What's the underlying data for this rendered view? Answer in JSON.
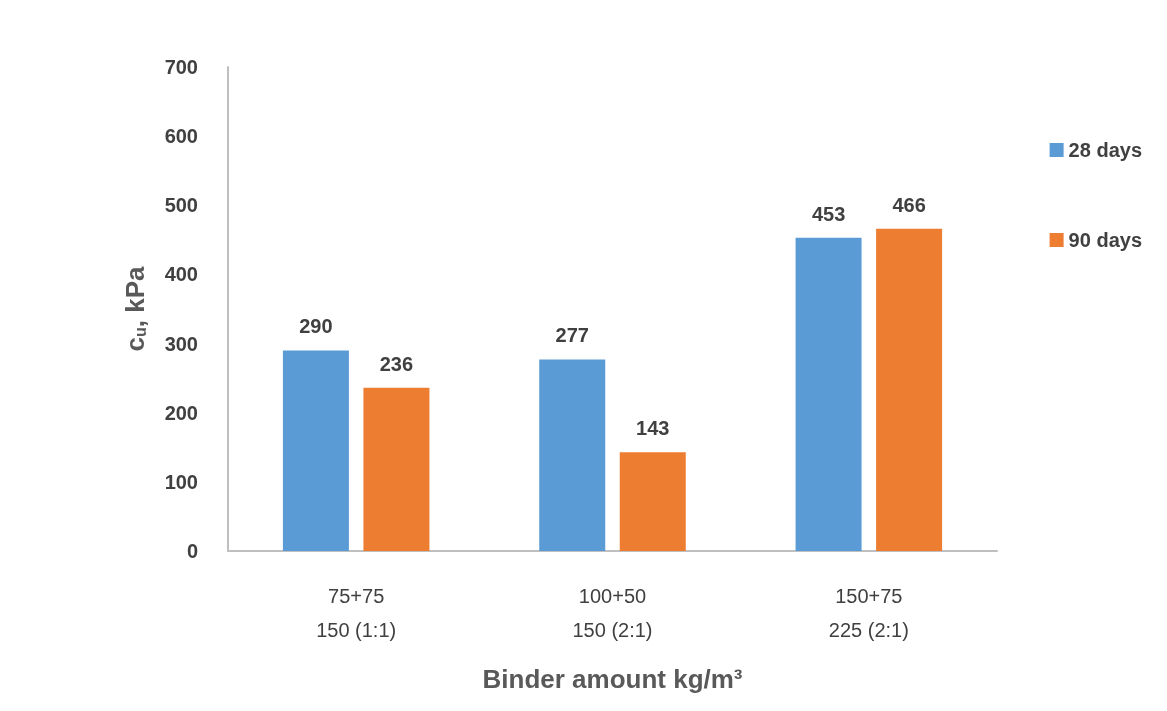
{
  "chart_data": {
    "type": "bar",
    "xlabel": "Binder amount kg/m³",
    "ylabel": "c$_{u}$, kPa",
    "categories": [
      "75+75\n150 (1:1)",
      "100+50\n150 (2:1)",
      "150+75\n225 (2:1)"
    ],
    "series": [
      {
        "name": "28 days",
        "color": "#5b9bd5",
        "values": [
          290,
          277,
          453
        ]
      },
      {
        "name": "90 days",
        "color": "#ed7d31",
        "values": [
          236,
          143,
          466
        ]
      }
    ],
    "ylim": [
      0,
      700
    ],
    "yticks": [
      0,
      100,
      200,
      300,
      400,
      500,
      600,
      700
    ],
    "grid": false,
    "legend": "right",
    "data_labels": true
  }
}
